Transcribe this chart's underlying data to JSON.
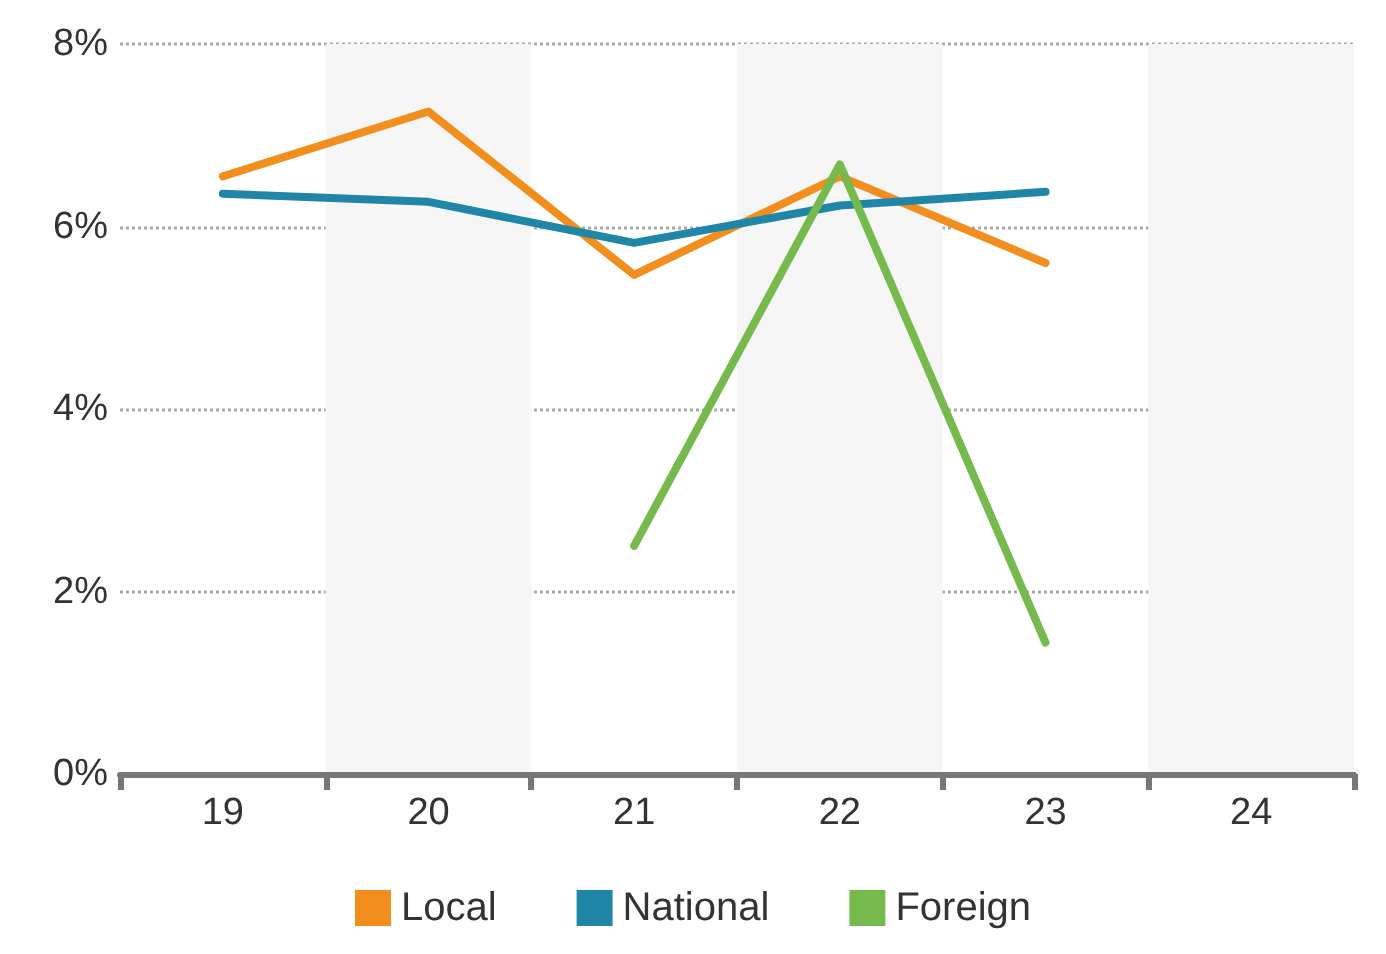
{
  "chart_data": {
    "type": "line",
    "categories": [
      "19",
      "20",
      "21",
      "22",
      "23",
      "24"
    ],
    "series": [
      {
        "name": "Local",
        "color": "#f28e1e",
        "values": [
          6.55,
          7.26,
          5.47,
          6.55,
          5.6,
          null
        ]
      },
      {
        "name": "National",
        "color": "#1f86a8",
        "values": [
          6.36,
          6.27,
          5.82,
          6.23,
          6.38,
          null
        ]
      },
      {
        "name": "Foreign",
        "color": "#76b94d",
        "values": [
          null,
          null,
          2.5,
          6.68,
          1.44,
          null
        ]
      }
    ],
    "ylim": [
      0,
      8
    ],
    "yticks": [
      {
        "value": 0,
        "label": "0%"
      },
      {
        "value": 2,
        "label": "2%"
      },
      {
        "value": 4,
        "label": "4%"
      },
      {
        "value": 6,
        "label": "6%"
      },
      {
        "value": 8,
        "label": "8%"
      }
    ],
    "grid": "y",
    "legend": "bottom",
    "marker": "none",
    "line_style": "solid"
  }
}
